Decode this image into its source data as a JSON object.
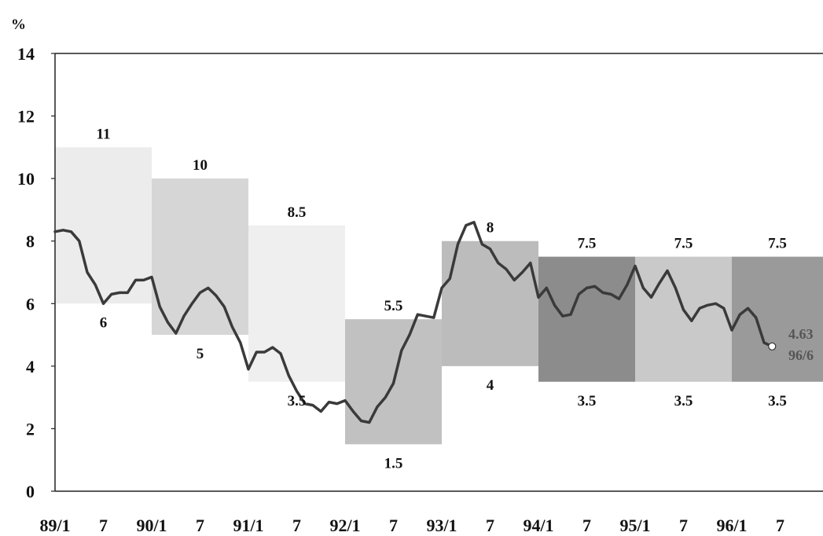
{
  "chart_data": {
    "type": "line",
    "unit": "%",
    "ylim": [
      0,
      14
    ],
    "y_ticks": [
      0,
      2,
      4,
      6,
      8,
      10,
      12,
      14
    ],
    "x_tick_labels": [
      "89/1",
      "7",
      "90/1",
      "7",
      "91/1",
      "7",
      "92/1",
      "7",
      "93/1",
      "7",
      "94/1",
      "7",
      "95/1",
      "7",
      "96/1",
      "7"
    ],
    "bands": [
      {
        "start": 0,
        "end": 12,
        "upper": 11,
        "lower": 6,
        "upper_label": "11",
        "lower_label": "6",
        "color": "#ececec"
      },
      {
        "start": 12,
        "end": 24,
        "upper": 10,
        "lower": 5,
        "upper_label": "10",
        "lower_label": "5",
        "color": "#d6d6d6"
      },
      {
        "start": 24,
        "end": 36,
        "upper": 8.5,
        "lower": 3.5,
        "upper_label": "8.5",
        "lower_label": "3.5",
        "color": "#efefef"
      },
      {
        "start": 36,
        "end": 48,
        "upper": 5.5,
        "lower": 1.5,
        "upper_label": "5.5",
        "lower_label": "1.5",
        "color": "#c1c1c1"
      },
      {
        "start": 48,
        "end": 60,
        "upper": 8,
        "lower": 4,
        "upper_label": "8",
        "lower_label": "4",
        "color": "#bcbcbc"
      },
      {
        "start": 60,
        "end": 72,
        "upper": 7.5,
        "lower": 3.5,
        "upper_label": "7.5",
        "lower_label": "3.5",
        "color": "#8c8c8c"
      },
      {
        "start": 72,
        "end": 84,
        "upper": 7.5,
        "lower": 3.5,
        "upper_label": "7.5",
        "lower_label": "3.5",
        "color": "#c9c9c9"
      },
      {
        "start": 84,
        "end": 96,
        "upper": 7.5,
        "lower": 3.5,
        "upper_label": "7.5",
        "lower_label": "3.5",
        "color": "#9a9a9a"
      }
    ],
    "series": [
      {
        "values": [
          8.3,
          8.35,
          8.3,
          8.0,
          7.0,
          6.6,
          6.0,
          6.3,
          6.35,
          6.35,
          6.75,
          6.75,
          6.85,
          5.9,
          5.4,
          5.05,
          5.6,
          6.0,
          6.35,
          6.5,
          6.25,
          5.9,
          5.25,
          4.75,
          3.9,
          4.45,
          4.45,
          4.6,
          4.4,
          3.7,
          3.2,
          2.8,
          2.75,
          2.55,
          2.85,
          2.8,
          2.9,
          2.55,
          2.25,
          2.2,
          2.7,
          3.0,
          3.45,
          4.5,
          5.0,
          5.65,
          5.6,
          5.55,
          6.5,
          6.8,
          7.9,
          8.5,
          8.6,
          7.9,
          7.75,
          7.3,
          7.1,
          6.75,
          7.0,
          7.3,
          6.2,
          6.5,
          5.95,
          5.6,
          5.65,
          6.3,
          6.5,
          6.55,
          6.35,
          6.3,
          6.15,
          6.6,
          7.2,
          6.5,
          6.2,
          6.65,
          7.05,
          6.5,
          5.8,
          5.45,
          5.85,
          5.95,
          6.0,
          5.85,
          5.15,
          5.65,
          5.85,
          5.55,
          4.75,
          4.63
        ],
        "color": "#3a3a3a"
      }
    ],
    "latest": {
      "index": 89,
      "value": 4.63,
      "value_label": "4.63",
      "date_label": "96/6"
    }
  }
}
